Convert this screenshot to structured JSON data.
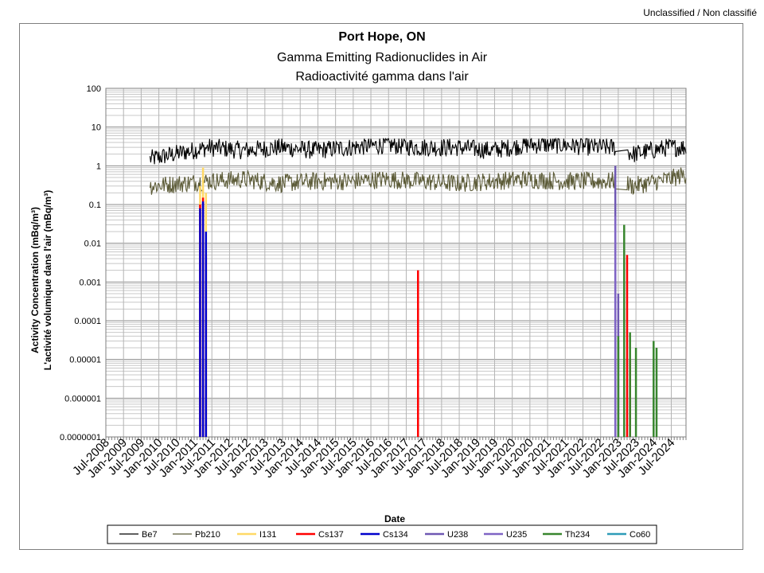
{
  "classification": "Unclassified / Non classifié",
  "chart_data": {
    "type": "line",
    "title": "Port Hope, ON",
    "subtitle": "Gamma Emitting Radionuclides in Air",
    "subtitle_fr": "Radioactivité gamma dans l'air",
    "xlabel": "Date",
    "ylabel_en": "Activity Concentration  (mBq/m³)",
    "ylabel_fr": "L'activité volumique dans l'air (mBq/m³)",
    "y_scale": "log",
    "ylim": [
      1e-07,
      100
    ],
    "y_ticks": [
      "100",
      "10",
      "1",
      "0.1",
      "0.01",
      "0.001",
      "0.0001",
      "0.00001",
      "0.000001",
      "0.0000001"
    ],
    "x_ticks": [
      "Jul-2008",
      "Jan-2009",
      "Jul-2009",
      "Jan-2010",
      "Jul-2010",
      "Jan-2011",
      "Jul-2011",
      "Jan-2012",
      "Jul-2012",
      "Jan-2013",
      "Jul-2013",
      "Jan-2014",
      "Jul-2014",
      "Jan-2015",
      "Jul-2015",
      "Jan-2016",
      "Jul-2016",
      "Jan-2017",
      "Jul-2017",
      "Jan-2018",
      "Jul-2018",
      "Jan-2019",
      "Jul-2019",
      "Jan-2020",
      "Jul-2020",
      "Jan-2021",
      "Jul-2021",
      "Jan-2022",
      "Jul-2022",
      "Jan-2023",
      "Jul-2023",
      "Jan-2024",
      "Jul-2024"
    ],
    "xlim": [
      "2008-07",
      "2024-12"
    ],
    "grid": true,
    "legend_position": "bottom",
    "series": [
      {
        "name": "Be7",
        "color": "#000000",
        "style": "noisy-band",
        "approx_range": [
          1.0,
          5.0
        ],
        "x": [
          "2009-10",
          "2011-06",
          "2012-06",
          "2013-06",
          "2014-06",
          "2015-06",
          "2016-06",
          "2017-06",
          "2018-06",
          "2019-06",
          "2020-06",
          "2021-06",
          "2022-06",
          "2023-01",
          "2023-06",
          "2024-06",
          "2024-12"
        ],
        "values": [
          1.5,
          3.0,
          2.5,
          3.0,
          2.5,
          3.0,
          3.5,
          3.0,
          3.0,
          2.5,
          3.5,
          3.5,
          3.0,
          3.0,
          2.0,
          3.0,
          3.0
        ]
      },
      {
        "name": "Pb210",
        "color": "#5b5a36",
        "style": "noisy-band",
        "approx_range": [
          0.1,
          1.0
        ],
        "x": [
          "2009-10",
          "2011-06",
          "2012-06",
          "2013-06",
          "2014-06",
          "2015-06",
          "2016-06",
          "2017-06",
          "2018-06",
          "2019-06",
          "2020-06",
          "2021-06",
          "2022-06",
          "2023-01",
          "2023-06",
          "2024-06",
          "2024-12"
        ],
        "values": [
          0.3,
          0.4,
          0.45,
          0.35,
          0.4,
          0.4,
          0.45,
          0.4,
          0.35,
          0.4,
          0.45,
          0.4,
          0.4,
          0.4,
          0.3,
          0.45,
          0.6
        ]
      },
      {
        "name": "I131",
        "color": "#ffd966",
        "x": [
          "2011-03",
          "2011-04",
          "2011-05"
        ],
        "values": [
          0.3,
          0.9,
          0.2
        ]
      },
      {
        "name": "Cs137",
        "color": "#ff0000",
        "x": [
          "2011-03",
          "2011-04",
          "2011-05",
          "2017-05",
          "2023-04",
          "2023-05"
        ],
        "values": [
          0.1,
          0.15,
          0.005,
          0.002,
          0.005,
          1e-05
        ]
      },
      {
        "name": "Cs134",
        "color": "#0000cc",
        "x": [
          "2011-03",
          "2011-04",
          "2011-05"
        ],
        "values": [
          0.08,
          0.12,
          0.02
        ]
      },
      {
        "name": "U238",
        "color": "#6f58b3",
        "x": [
          "2022-12",
          "2023-01"
        ],
        "values": [
          1.0,
          0.0005
        ]
      },
      {
        "name": "U235",
        "color": "#7f64c4",
        "x": [
          "2022-12",
          "2023-01"
        ],
        "values": [
          0.05,
          3e-05
        ]
      },
      {
        "name": "Th234",
        "color": "#38862e",
        "x": [
          "2023-01",
          "2023-03",
          "2023-05",
          "2023-07",
          "2024-01",
          "2024-02"
        ],
        "values": [
          4e-05,
          0.03,
          5e-05,
          2e-05,
          3e-05,
          2e-05
        ]
      },
      {
        "name": "Co60",
        "color": "#2e9cb8",
        "x": [],
        "values": []
      }
    ]
  }
}
